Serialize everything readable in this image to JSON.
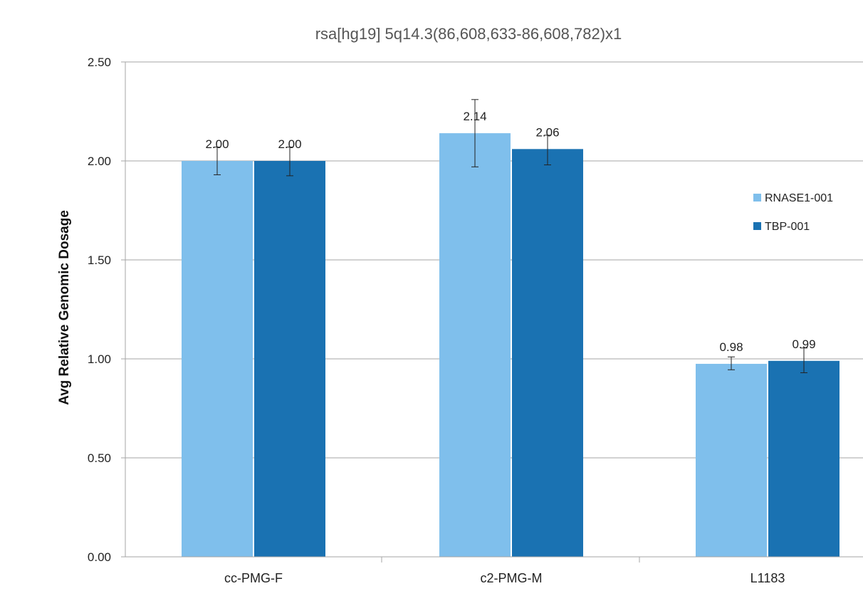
{
  "chart_data": {
    "type": "bar",
    "title": "rsa[hg19] 5q14.3(86,608,633-86,608,782)x1",
    "xlabel": "",
    "ylabel": "Avg Relative Genomic Dosage",
    "ylim": [
      0,
      2.5
    ],
    "yticks": [
      "0.00",
      "0.50",
      "1.00",
      "1.50",
      "2.00",
      "2.50"
    ],
    "ytick_values": [
      0,
      0.5,
      1.0,
      1.5,
      2.0,
      2.5
    ],
    "categories": [
      "cc-PMG-F",
      "c2-PMG-M",
      "L1183"
    ],
    "grid": true,
    "legend_position": "right",
    "series": [
      {
        "name": "RNASE1-001",
        "color": "#7fbfec",
        "values": [
          2.0,
          2.14,
          0.975
        ],
        "labels": [
          "2.00",
          "2.14",
          "0.98"
        ],
        "err_low": [
          1.93,
          1.97,
          0.945
        ],
        "err_high": [
          2.07,
          2.31,
          1.01
        ]
      },
      {
        "name": "TBP-001",
        "color": "#1a72b2",
        "values": [
          2.0,
          2.06,
          0.99
        ],
        "labels": [
          "2.00",
          "2.06",
          "0.99"
        ],
        "err_low": [
          1.925,
          1.98,
          0.93
        ],
        "err_high": [
          2.07,
          2.13,
          1.055
        ]
      }
    ]
  }
}
